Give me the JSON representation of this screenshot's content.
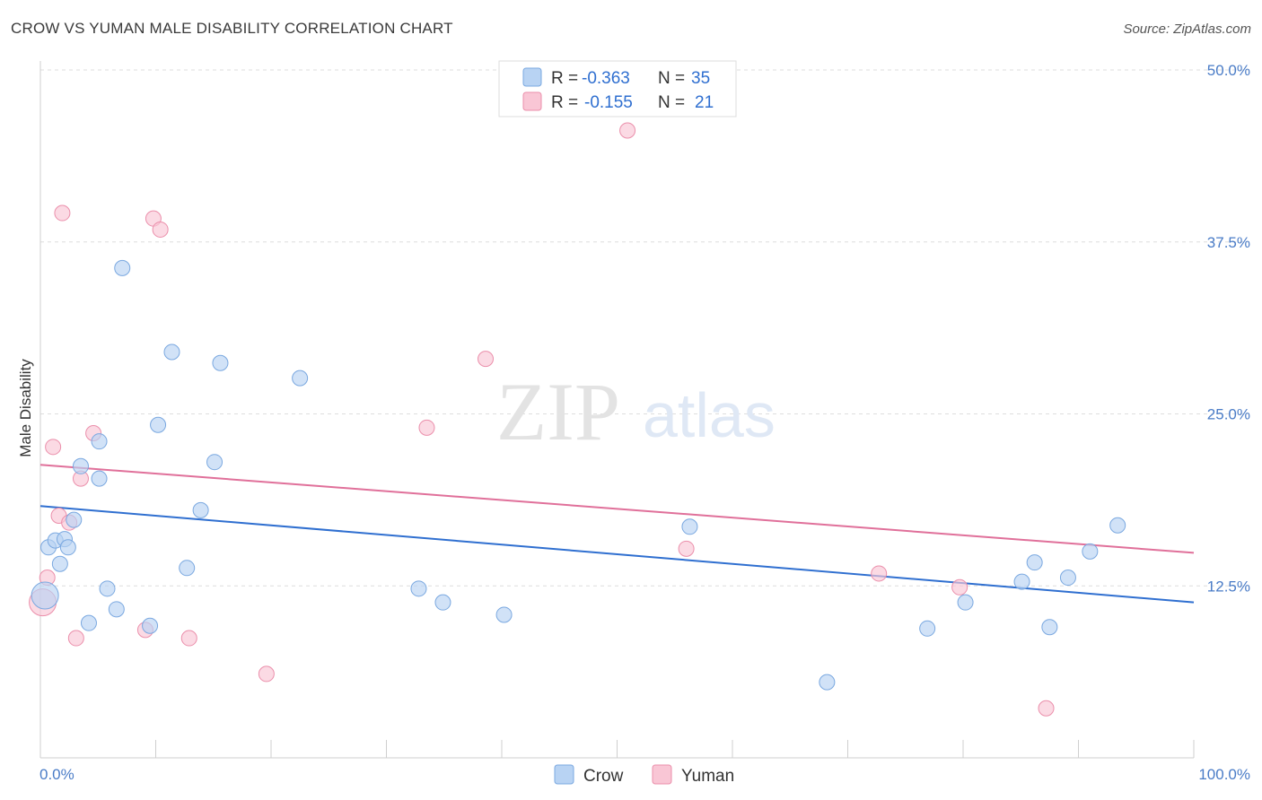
{
  "title": "CROW VS YUMAN MALE DISABILITY CORRELATION CHART",
  "source": "Source: ZipAtlas.com",
  "watermark": {
    "zip": "ZIP",
    "atlas": "atlas"
  },
  "colors": {
    "crow_fill": "#b8d3f3",
    "crow_stroke": "#7aa8e0",
    "crow_line": "#2f6fd0",
    "yuman_fill": "#f9c6d5",
    "yuman_stroke": "#eb8fab",
    "yuman_line": "#e0709a",
    "tick_text": "#4a7cc7",
    "grid": "#dddddd"
  },
  "legend": {
    "crow": {
      "r_label": "R =",
      "r_value": "-0.363",
      "n_label": "N =",
      "n_value": "35"
    },
    "yuman": {
      "r_label": "R =",
      "r_value": "-0.155",
      "n_label": "N =",
      "n_value": "21"
    }
  },
  "chart_data": {
    "type": "scatter",
    "title": "CROW VS YUMAN MALE DISABILITY CORRELATION CHART",
    "xlabel": "",
    "ylabel": "Male Disability",
    "xlim": [
      0,
      100
    ],
    "ylim": [
      0,
      50
    ],
    "x_tick_labels": [
      "0.0%",
      "100.0%"
    ],
    "y_ticks": [
      12.5,
      25.0,
      37.5,
      50.0
    ],
    "y_tick_labels": [
      "12.5%",
      "25.0%",
      "37.5%",
      "50.0%"
    ],
    "grid": true,
    "legend_position": "top-center",
    "series": [
      {
        "name": "Crow",
        "r": -0.363,
        "n": 35,
        "trend": {
          "x": [
            0,
            100
          ],
          "y": [
            18.3,
            11.3
          ]
        },
        "points": [
          [
            0.4,
            11.8
          ],
          [
            0.7,
            15.3
          ],
          [
            1.3,
            15.8
          ],
          [
            1.7,
            14.1
          ],
          [
            2.1,
            15.9
          ],
          [
            2.4,
            15.3
          ],
          [
            2.9,
            17.3
          ],
          [
            3.5,
            21.2
          ],
          [
            4.2,
            9.8
          ],
          [
            5.1,
            23.0
          ],
          [
            5.1,
            20.3
          ],
          [
            5.8,
            12.3
          ],
          [
            6.6,
            10.8
          ],
          [
            7.1,
            35.6
          ],
          [
            9.5,
            9.6
          ],
          [
            10.2,
            24.2
          ],
          [
            11.4,
            29.5
          ],
          [
            12.7,
            13.8
          ],
          [
            13.9,
            18.0
          ],
          [
            15.1,
            21.5
          ],
          [
            15.6,
            28.7
          ],
          [
            22.5,
            27.6
          ],
          [
            32.8,
            12.3
          ],
          [
            34.9,
            11.3
          ],
          [
            40.2,
            10.4
          ],
          [
            56.3,
            16.8
          ],
          [
            68.2,
            5.5
          ],
          [
            76.9,
            9.4
          ],
          [
            80.2,
            11.3
          ],
          [
            85.1,
            12.8
          ],
          [
            86.2,
            14.2
          ],
          [
            87.5,
            9.5
          ],
          [
            89.1,
            13.1
          ],
          [
            91.0,
            15.0
          ],
          [
            93.4,
            16.9
          ]
        ]
      },
      {
        "name": "Yuman",
        "r": -0.155,
        "n": 21,
        "trend": {
          "x": [
            0,
            100
          ],
          "y": [
            21.3,
            14.9
          ]
        },
        "points": [
          [
            0.2,
            11.3
          ],
          [
            0.6,
            13.1
          ],
          [
            1.1,
            22.6
          ],
          [
            1.6,
            17.6
          ],
          [
            1.9,
            39.6
          ],
          [
            2.5,
            17.1
          ],
          [
            3.1,
            8.7
          ],
          [
            3.5,
            20.3
          ],
          [
            4.6,
            23.6
          ],
          [
            9.1,
            9.3
          ],
          [
            9.8,
            39.2
          ],
          [
            10.4,
            38.4
          ],
          [
            12.9,
            8.7
          ],
          [
            19.6,
            6.1
          ],
          [
            33.5,
            24.0
          ],
          [
            38.6,
            29.0
          ],
          [
            50.9,
            45.6
          ],
          [
            56.0,
            15.2
          ],
          [
            72.7,
            13.4
          ],
          [
            79.7,
            12.4
          ],
          [
            87.2,
            3.6
          ]
        ]
      }
    ]
  },
  "bottom_legend": {
    "crow": "Crow",
    "yuman": "Yuman"
  }
}
